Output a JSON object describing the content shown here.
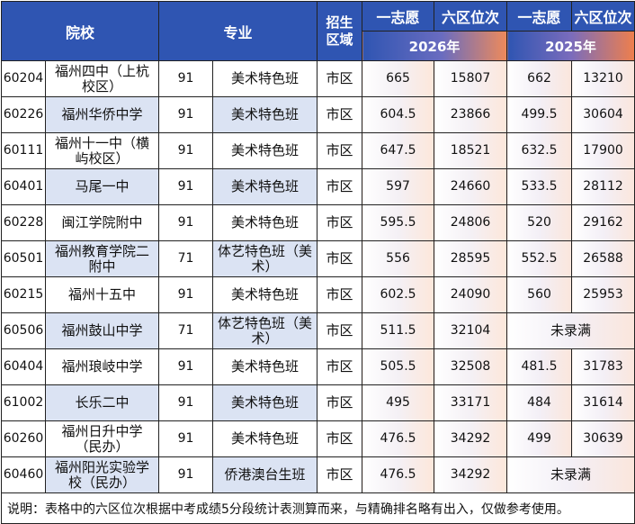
{
  "header": {
    "school": "院校",
    "major": "专业",
    "area": "招生区域",
    "first_choice_2026": "一志愿",
    "rank_2026": "六区位次",
    "first_choice_2025": "一志愿",
    "rank_2025": "六区位次",
    "year_2026": "2026年",
    "year_2025": "2025年"
  },
  "rows": [
    {
      "code": "60204",
      "school": "福州四中（上杭校区）",
      "score": "91",
      "major": "美术特色班",
      "area": "市区",
      "v26": "665",
      "r26": "15807",
      "v25": "662",
      "r25": "13210"
    },
    {
      "code": "60226",
      "school": "福州华侨中学",
      "score": "91",
      "major": "美术特色班",
      "area": "市区",
      "v26": "604.5",
      "r26": "23866",
      "v25": "499.5",
      "r25": "30604"
    },
    {
      "code": "60111",
      "school": "福州十一中（横屿校区）",
      "score": "91",
      "major": "美术特色班",
      "area": "市区",
      "v26": "647.5",
      "r26": "18521",
      "v25": "632.5",
      "r25": "17900"
    },
    {
      "code": "60401",
      "school": "马尾一中",
      "score": "91",
      "major": "美术特色班",
      "area": "市区",
      "v26": "597",
      "r26": "24660",
      "v25": "533.5",
      "r25": "28112"
    },
    {
      "code": "60228",
      "school": "闽江学院附中",
      "score": "91",
      "major": "美术特色班",
      "area": "市区",
      "v26": "595.5",
      "r26": "24806",
      "v25": "520",
      "r25": "29162"
    },
    {
      "code": "60501",
      "school": "福州教育学院二附中",
      "score": "71",
      "major": "体艺特色班（美术）",
      "area": "市区",
      "v26": "556",
      "r26": "28595",
      "v25": "552.5",
      "r25": "26588"
    },
    {
      "code": "60215",
      "school": "福州十五中",
      "score": "91",
      "major": "美术特色班",
      "area": "市区",
      "v26": "602.5",
      "r26": "24090",
      "v25": "560",
      "r25": "25953"
    },
    {
      "code": "60506",
      "school": "福州鼓山中学",
      "score": "71",
      "major": "体艺特色班（美术）",
      "area": "市区",
      "v26": "511.5",
      "r26": "32104",
      "v25_merged": "未录满"
    },
    {
      "code": "60404",
      "school": "福州琅岐中学",
      "score": "91",
      "major": "美术特色班",
      "area": "市区",
      "v26": "505.5",
      "r26": "32508",
      "v25": "481.5",
      "r25": "31783"
    },
    {
      "code": "61002",
      "school": "长乐二中",
      "score": "91",
      "major": "美术特色班",
      "area": "市区",
      "v26": "495",
      "r26": "33171",
      "v25": "484",
      "r25": "31614"
    },
    {
      "code": "60260",
      "school": "福州日升中学（民办）",
      "score": "91",
      "major": "美术特色班",
      "area": "市区",
      "v26": "476.5",
      "r26": "34292",
      "v25": "499",
      "r25": "30639"
    },
    {
      "code": "60460",
      "school": "福州阳光实验学校（民办）",
      "score": "91",
      "major": "侨港澳台生班",
      "area": "市区",
      "v26": "476.5",
      "r26": "34292",
      "v25_merged": "未录满"
    }
  ],
  "footer": "说明：表格中的六区位次根据中考成绩5分段统计表测算而来，与精确排名略有出入，仅做参考使用。",
  "colors": {
    "header_blue": "#2f55b2",
    "alt_row": "#dbe3f3",
    "accent_orange": "#ef7f4c"
  }
}
